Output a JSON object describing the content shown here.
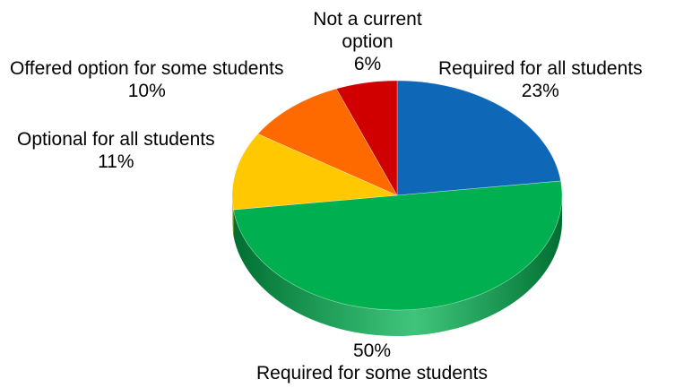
{
  "chart_data": {
    "type": "pie",
    "style": "3d",
    "title": "",
    "slices": [
      {
        "label": "Required for all students",
        "value": 23,
        "pct_label": "23%",
        "color": "#0F67B8",
        "side_color": "#0A4A86"
      },
      {
        "label": "Required for some students",
        "value": 50,
        "pct_label": "50%",
        "color": "#00B050",
        "side_color": "#006E31"
      },
      {
        "label": "Optional for all students",
        "value": 11,
        "pct_label": "11%",
        "color": "#FFC800",
        "side_color": "#B38C00"
      },
      {
        "label": "Offered option for some students",
        "value": 10,
        "pct_label": "10%",
        "color": "#FF6A00",
        "side_color": "#B24A00"
      },
      {
        "label": "Not a current option",
        "value": 6,
        "pct_label": "6%",
        "color": "#D00000",
        "side_color": "#8E0000"
      }
    ]
  }
}
